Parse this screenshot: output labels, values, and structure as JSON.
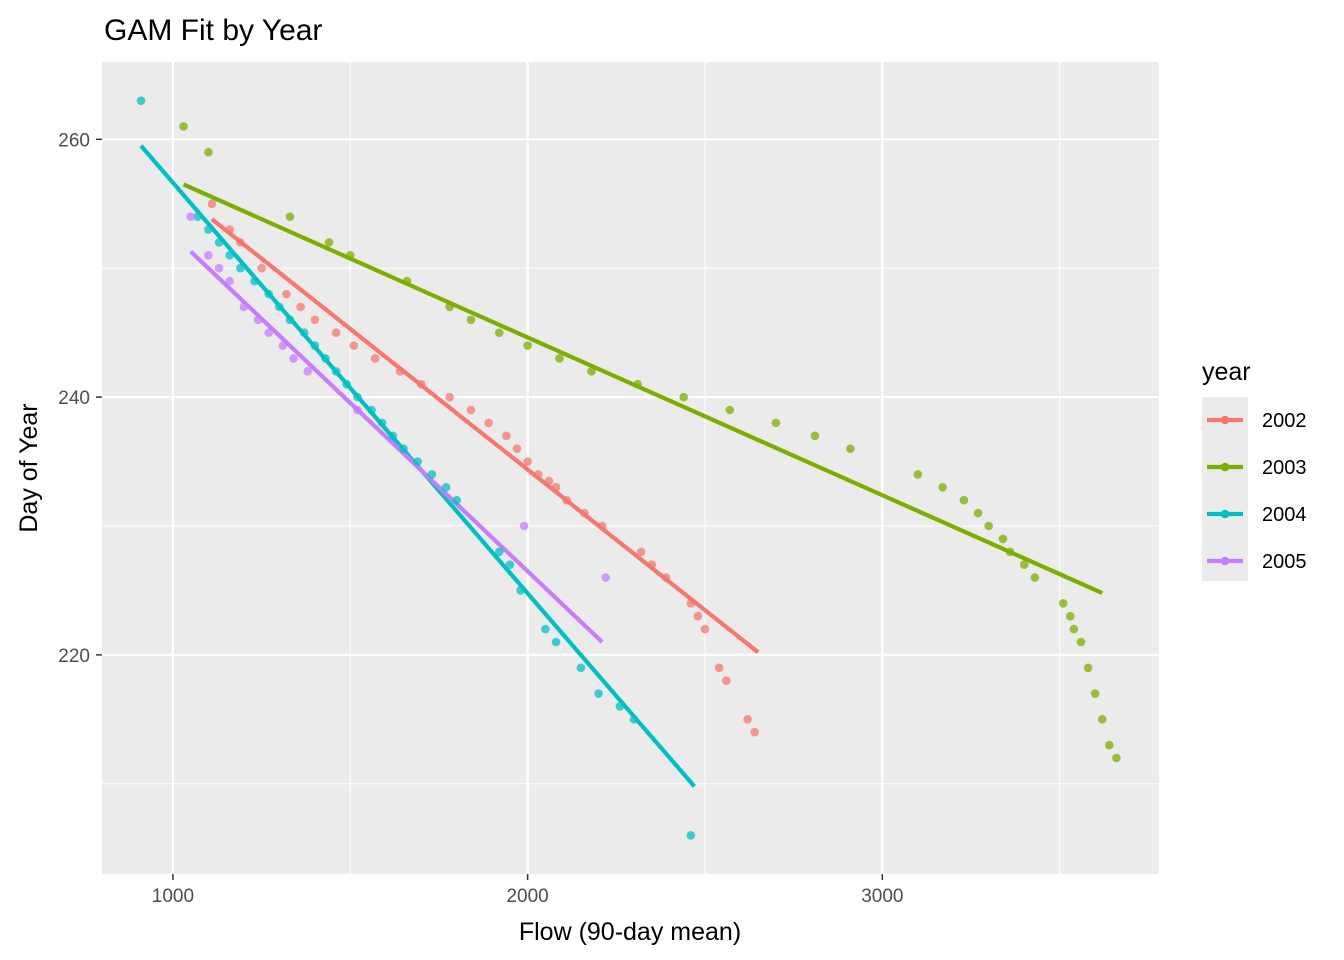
{
  "chart_data": {
    "type": "scatter",
    "title": "GAM Fit by Year",
    "xlabel": "Flow (90-day mean)",
    "ylabel": "Day of Year",
    "xlim": [
      800,
      3780
    ],
    "ylim": [
      203,
      266
    ],
    "xticks": [
      1000,
      2000,
      3000
    ],
    "xtick_labels": [
      "1000",
      "2000",
      "3000"
    ],
    "yticks": [
      220,
      240,
      260
    ],
    "ytick_labels": [
      "220",
      "240",
      "260"
    ],
    "grid": true,
    "panel_background": "#ebebeb",
    "legend": {
      "title": "year",
      "position": "right"
    },
    "series": [
      {
        "name": "2002",
        "color": "#F8766D",
        "fit_line": [
          [
            1110,
            253.8
          ],
          [
            2650,
            220.2
          ]
        ],
        "points": [
          [
            1110,
            255
          ],
          [
            1160,
            253
          ],
          [
            1190,
            252
          ],
          [
            1250,
            250
          ],
          [
            1320,
            248
          ],
          [
            1360,
            247
          ],
          [
            1400,
            246
          ],
          [
            1460,
            245
          ],
          [
            1510,
            244
          ],
          [
            1570,
            243
          ],
          [
            1640,
            242
          ],
          [
            1700,
            241
          ],
          [
            1780,
            240
          ],
          [
            1840,
            239
          ],
          [
            1890,
            238
          ],
          [
            1940,
            237
          ],
          [
            1970,
            236
          ],
          [
            2000,
            235
          ],
          [
            2030,
            234
          ],
          [
            2060,
            233.5
          ],
          [
            2080,
            233
          ],
          [
            2110,
            232
          ],
          [
            2160,
            231
          ],
          [
            2210,
            230
          ],
          [
            2320,
            228
          ],
          [
            2350,
            227
          ],
          [
            2390,
            226
          ],
          [
            2460,
            224
          ],
          [
            2480,
            223
          ],
          [
            2500,
            222
          ],
          [
            2540,
            219
          ],
          [
            2560,
            218
          ],
          [
            2620,
            215
          ],
          [
            2640,
            214
          ]
        ]
      },
      {
        "name": "2003",
        "color": "#7CAE00",
        "fit_line": [
          [
            1030,
            256.5
          ],
          [
            3620,
            224.8
          ]
        ],
        "points": [
          [
            1030,
            261
          ],
          [
            1100,
            259
          ],
          [
            1330,
            254
          ],
          [
            1440,
            252
          ],
          [
            1500,
            251
          ],
          [
            1660,
            249
          ],
          [
            1780,
            247
          ],
          [
            1840,
            246
          ],
          [
            1920,
            245
          ],
          [
            2000,
            244
          ],
          [
            2090,
            243
          ],
          [
            2180,
            242
          ],
          [
            2310,
            241
          ],
          [
            2440,
            240
          ],
          [
            2570,
            239
          ],
          [
            2700,
            238
          ],
          [
            2810,
            237
          ],
          [
            2910,
            236
          ],
          [
            3100,
            234
          ],
          [
            3170,
            233
          ],
          [
            3230,
            232
          ],
          [
            3270,
            231
          ],
          [
            3300,
            230
          ],
          [
            3340,
            229
          ],
          [
            3360,
            228
          ],
          [
            3400,
            227
          ],
          [
            3430,
            226
          ],
          [
            3510,
            224
          ],
          [
            3530,
            223
          ],
          [
            3540,
            222
          ],
          [
            3560,
            221
          ],
          [
            3580,
            219
          ],
          [
            3600,
            217
          ],
          [
            3620,
            215
          ],
          [
            3640,
            213
          ],
          [
            3660,
            212
          ]
        ]
      },
      {
        "name": "2004",
        "color": "#00BFC4",
        "fit_line": [
          [
            910,
            259.5
          ],
          [
            2470,
            209.8
          ]
        ],
        "points": [
          [
            910,
            263
          ],
          [
            1070,
            254
          ],
          [
            1100,
            253
          ],
          [
            1130,
            252
          ],
          [
            1160,
            251
          ],
          [
            1190,
            250
          ],
          [
            1230,
            249
          ],
          [
            1270,
            248
          ],
          [
            1300,
            247
          ],
          [
            1330,
            246
          ],
          [
            1370,
            245
          ],
          [
            1400,
            244
          ],
          [
            1430,
            243
          ],
          [
            1460,
            242
          ],
          [
            1490,
            241
          ],
          [
            1520,
            240
          ],
          [
            1560,
            239
          ],
          [
            1590,
            238
          ],
          [
            1620,
            237
          ],
          [
            1650,
            236
          ],
          [
            1690,
            235
          ],
          [
            1730,
            234
          ],
          [
            1770,
            233
          ],
          [
            1800,
            232
          ],
          [
            1920,
            228
          ],
          [
            1950,
            227
          ],
          [
            1980,
            225
          ],
          [
            2050,
            222
          ],
          [
            2080,
            221
          ],
          [
            2150,
            219
          ],
          [
            2200,
            217
          ],
          [
            2260,
            216
          ],
          [
            2300,
            215
          ],
          [
            2460,
            206
          ]
        ]
      },
      {
        "name": "2005",
        "color": "#C77CFF",
        "fit_line": [
          [
            1050,
            251.3
          ],
          [
            2210,
            221.0
          ]
        ],
        "points": [
          [
            1050,
            254
          ],
          [
            1100,
            251
          ],
          [
            1130,
            250
          ],
          [
            1160,
            249
          ],
          [
            1200,
            247
          ],
          [
            1240,
            246
          ],
          [
            1270,
            245
          ],
          [
            1310,
            244
          ],
          [
            1340,
            243
          ],
          [
            1380,
            242
          ],
          [
            1520,
            239
          ],
          [
            1990,
            230
          ],
          [
            2220,
            226
          ]
        ]
      }
    ]
  }
}
